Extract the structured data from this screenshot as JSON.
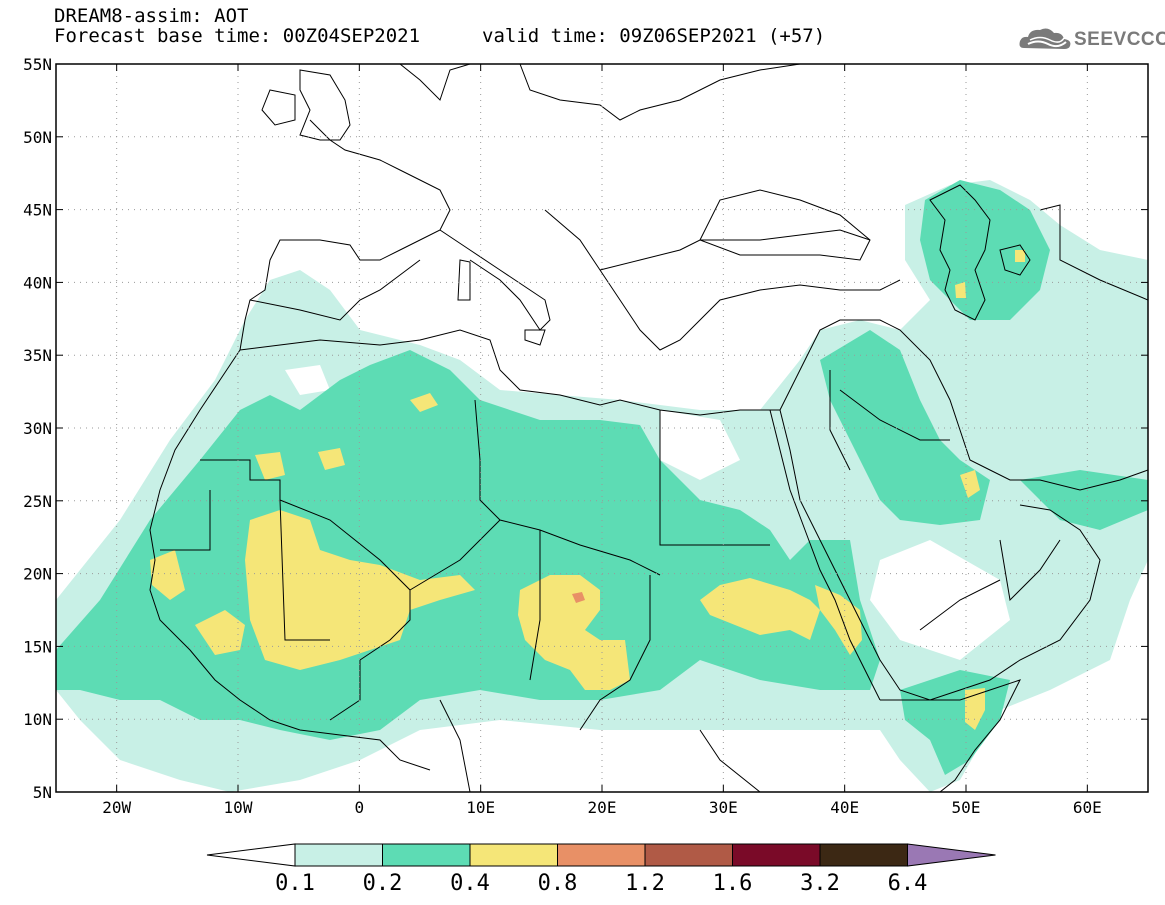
{
  "title": {
    "line1": "DREAM8-assim: AOT",
    "base": "Forecast base time: 00Z04SEP2021",
    "valid": "valid time: 09Z06SEP2021 (+57)"
  },
  "logo": {
    "text": "SEEVCCC",
    "icon": "cloud-icon"
  },
  "map": {
    "lat_labels": [
      "55N",
      "50N",
      "45N",
      "40N",
      "35N",
      "30N",
      "25N",
      "20N",
      "15N",
      "10N",
      "5N"
    ],
    "lat_values": [
      55,
      50,
      45,
      40,
      35,
      30,
      25,
      20,
      15,
      10,
      5
    ],
    "lon_labels": [
      "20W",
      "10W",
      "0",
      "10E",
      "20E",
      "30E",
      "40E",
      "50E",
      "60E"
    ],
    "lon_values": [
      -20,
      -10,
      0,
      10,
      20,
      30,
      40,
      50,
      60
    ],
    "extent": {
      "lon": [
        -25,
        65
      ],
      "lat": [
        5,
        55
      ]
    },
    "variable": "AOT"
  },
  "colorbar": {
    "labels": [
      "0.1",
      "0.2",
      "0.4",
      "0.8",
      "1.2",
      "1.6",
      "3.2",
      "6.4"
    ],
    "colors": [
      "#ffffff",
      "#c8f0e6",
      "#5ddcb4",
      "#f5e678",
      "#e89066",
      "#b05a46",
      "#7a0a28",
      "#3c2814",
      "#9a78b4"
    ]
  },
  "colors": {
    "level_01": "#c8f0e6",
    "level_02": "#5ddcb4",
    "level_04": "#f5e678",
    "level_08": "#e89066"
  }
}
